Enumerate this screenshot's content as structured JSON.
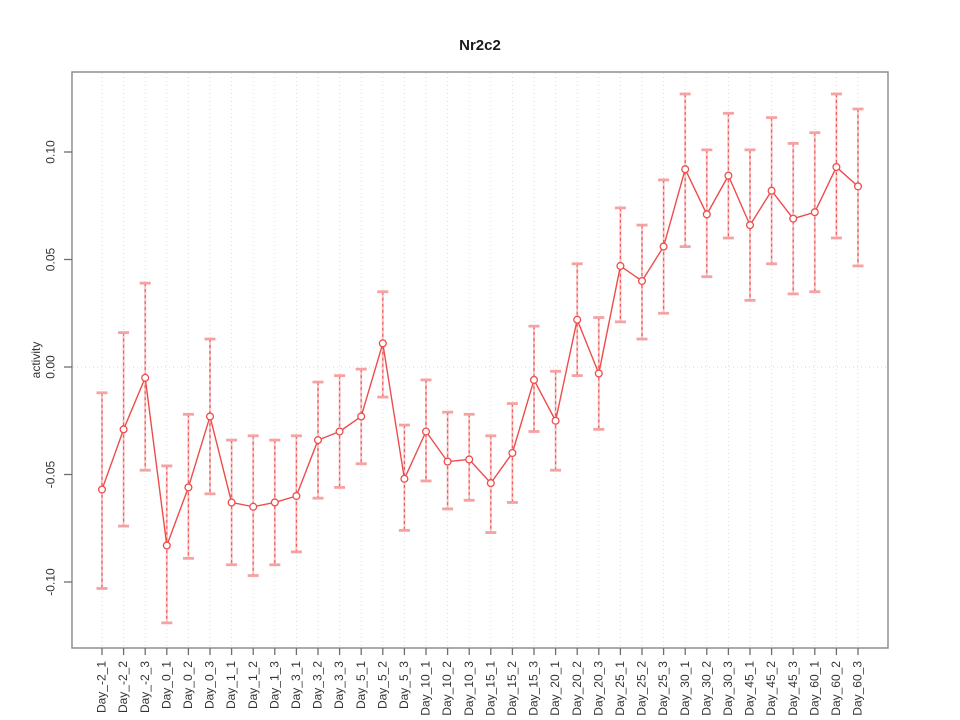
{
  "title": "Nr2c2",
  "chart_data": {
    "type": "line",
    "title": "Nr2c2",
    "xlabel": "",
    "ylabel": "activity",
    "ylim": [
      -0.131,
      0.137
    ],
    "grid": "dotted vertical gridline per category, dotted horizontal line at 0",
    "legend_position": "none",
    "yticks": [
      0.1,
      0.05,
      0.0,
      -0.05,
      -0.1
    ],
    "ytick_labels": [
      "0.10",
      "0.05",
      "0.00",
      "-0.05",
      "-0.10"
    ],
    "categories": [
      "Day_-2_1",
      "Day_-2_2",
      "Day_-2_3",
      "Day_0_1",
      "Day_0_2",
      "Day_0_3",
      "Day_1_1",
      "Day_1_2",
      "Day_1_3",
      "Day_3_1",
      "Day_3_2",
      "Day_3_3",
      "Day_5_1",
      "Day_5_2",
      "Day_5_3",
      "Day_10_1",
      "Day_10_2",
      "Day_10_3",
      "Day_15_1",
      "Day_15_2",
      "Day_15_3",
      "Day_20_1",
      "Day_20_2",
      "Day_20_3",
      "Day_25_1",
      "Day_25_2",
      "Day_25_3",
      "Day_30_1",
      "Day_30_2",
      "Day_30_3",
      "Day_45_1",
      "Day_45_2",
      "Day_45_3",
      "Day_60_1",
      "Day_60_2",
      "Day_60_3"
    ],
    "series": [
      {
        "name": "activity",
        "marker": "open-circle",
        "values": [
          -0.057,
          -0.029,
          -0.005,
          -0.083,
          -0.056,
          -0.023,
          -0.063,
          -0.065,
          -0.063,
          -0.06,
          -0.034,
          -0.03,
          -0.023,
          0.011,
          -0.052,
          -0.03,
          -0.044,
          -0.043,
          -0.054,
          -0.04,
          -0.006,
          -0.025,
          0.022,
          -0.003,
          0.047,
          0.04,
          0.056,
          0.092,
          0.071,
          0.089,
          0.066,
          0.082,
          0.069,
          0.072,
          0.093,
          0.084
        ],
        "error_lower": [
          -0.103,
          -0.074,
          -0.048,
          -0.119,
          -0.089,
          -0.059,
          -0.092,
          -0.097,
          -0.092,
          -0.086,
          -0.061,
          -0.056,
          -0.045,
          -0.014,
          -0.076,
          -0.053,
          -0.066,
          -0.062,
          -0.077,
          -0.063,
          -0.03,
          -0.048,
          -0.004,
          -0.029,
          0.021,
          0.013,
          0.025,
          0.056,
          0.042,
          0.06,
          0.031,
          0.048,
          0.034,
          0.035,
          0.06,
          0.047
        ],
        "error_upper": [
          -0.012,
          0.016,
          0.039,
          -0.046,
          -0.022,
          0.013,
          -0.034,
          -0.032,
          -0.034,
          -0.032,
          -0.007,
          -0.004,
          -0.001,
          0.035,
          -0.027,
          -0.006,
          -0.021,
          -0.022,
          -0.032,
          -0.017,
          0.019,
          -0.002,
          0.048,
          0.023,
          0.074,
          0.066,
          0.087,
          0.127,
          0.101,
          0.118,
          0.101,
          0.116,
          0.104,
          0.109,
          0.127,
          0.12
        ]
      }
    ],
    "colors": {
      "line": "#ee4c4c",
      "marker_stroke": "#ee4c4c",
      "marker_fill": "#ffffff",
      "errorbar_stem": "#ee5252",
      "errorbar_stem_under": "#f8b4b4",
      "errorbar_cap": "#f5a2a2",
      "gridline": "#dcdcdc",
      "zero_line": "#d6d6d6",
      "box": "#878787",
      "tick": "#6e6e6e",
      "text": "#333333"
    }
  }
}
